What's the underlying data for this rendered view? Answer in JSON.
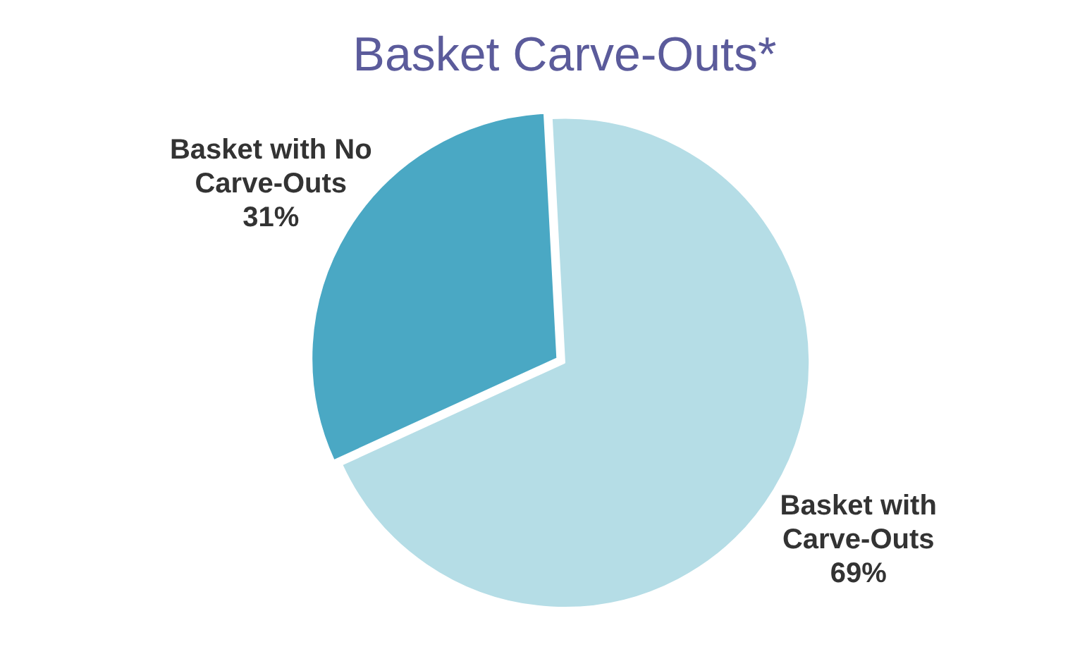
{
  "chart_data": {
    "type": "pie",
    "title": "Basket Carve-Outs*",
    "categories": [
      "Basket with No Carve-Outs",
      "Basket with Carve-Outs"
    ],
    "values": [
      31,
      69
    ],
    "colors": [
      "#4aa8c4",
      "#b5dde6"
    ],
    "value_labels": [
      "31%",
      "69%"
    ],
    "legend": false
  }
}
